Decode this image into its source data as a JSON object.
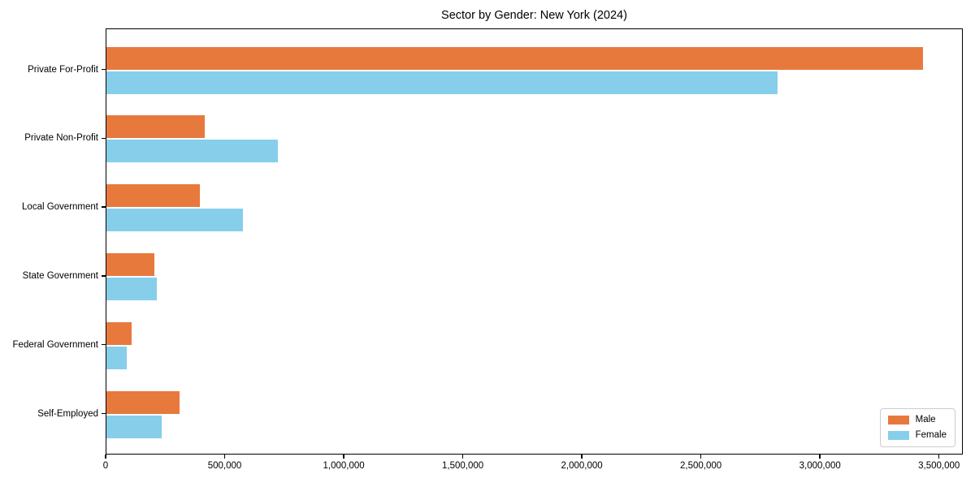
{
  "chart_data": {
    "type": "bar",
    "orientation": "horizontal",
    "title": "Sector by Gender: New York (2024)",
    "xlabel": "",
    "ylabel": "",
    "categories": [
      "Private For-Profit",
      "Private Non-Profit",
      "Local Government",
      "State Government",
      "Federal Government",
      "Self-Employed"
    ],
    "series": [
      {
        "name": "Male",
        "color": "#e8793d",
        "values": [
          3430000,
          413000,
          393000,
          200000,
          105000,
          307000
        ]
      },
      {
        "name": "Female",
        "color": "#87ceeb",
        "values": [
          2820000,
          720000,
          574000,
          210000,
          85000,
          231000
        ]
      }
    ],
    "xlim": [
      0,
      3600000
    ],
    "xticks": [
      {
        "value": 0,
        "label": "0"
      },
      {
        "value": 500000,
        "label": "500,000"
      },
      {
        "value": 1000000,
        "label": "1,000,000"
      },
      {
        "value": 1500000,
        "label": "1,500,000"
      },
      {
        "value": 2000000,
        "label": "2,000,000"
      },
      {
        "value": 2500000,
        "label": "2,500,000"
      },
      {
        "value": 3000000,
        "label": "3,000,000"
      },
      {
        "value": 3500000,
        "label": "3,500,000"
      }
    ],
    "grid": false,
    "legend_position": "lower right"
  },
  "colors": {
    "spine": "#000000",
    "text": "#000000",
    "background": "#ffffff",
    "legend_border": "#cccccc"
  }
}
